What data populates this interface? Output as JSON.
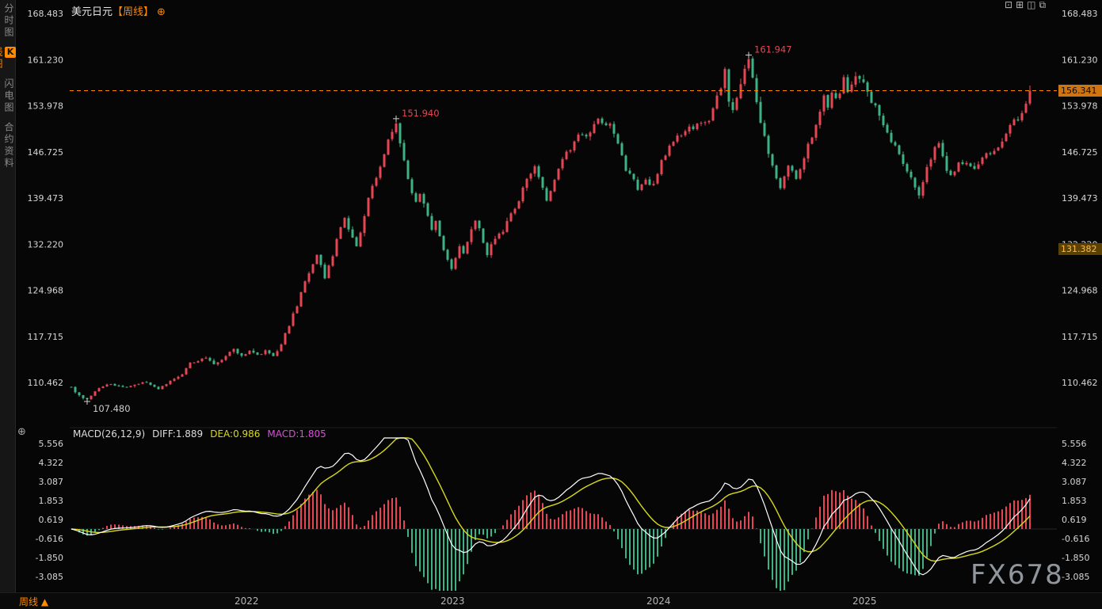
{
  "app": {
    "title_symbol": "美元日元",
    "title_period": "【周线】",
    "watermark": "FX678"
  },
  "icons": {
    "add_circle": "⊕"
  },
  "sidebar": {
    "tabs": [
      {
        "label": "分时图",
        "active": false,
        "boxed_first_char": false
      },
      {
        "label": "K线图",
        "active": true,
        "boxed_first_char": true
      },
      {
        "label": "闪电图",
        "active": false,
        "boxed_first_char": false
      },
      {
        "label": "合约资料",
        "active": false,
        "boxed_first_char": false
      }
    ]
  },
  "toolbar": {
    "icons": [
      {
        "name": "single-pane-layout-icon",
        "glyph": "⊡"
      },
      {
        "name": "grid-layout-icon",
        "glyph": "⊞"
      },
      {
        "name": "split-pane-layout-icon",
        "glyph": "◫"
      },
      {
        "name": "new-window-icon",
        "glyph": "⧉"
      }
    ]
  },
  "price_axis": {
    "ticks": [
      "168.483",
      "161.230",
      "153.978",
      "146.725",
      "139.473",
      "132.220",
      "124.968",
      "117.715",
      "110.462"
    ]
  },
  "macd_axis": {
    "ticks": [
      "5.556",
      "4.322",
      "3.087",
      "1.853",
      "0.619",
      "-0.616",
      "-1.850",
      "-3.085"
    ]
  },
  "x_axis": {
    "years": [
      {
        "label": "2022",
        "week": 44
      },
      {
        "label": "2023",
        "week": 96
      },
      {
        "label": "2024",
        "week": 148
      },
      {
        "label": "2025",
        "week": 200
      }
    ]
  },
  "badges": {
    "current_price": "156.341",
    "secondary_price": "131.382"
  },
  "annotations": [
    {
      "week": 4,
      "price": 107.48,
      "label": "107.480",
      "placement": "below",
      "color": "neutral"
    },
    {
      "week": 82,
      "price": 151.94,
      "label": "151.940",
      "placement": "above",
      "color": "up"
    },
    {
      "week": 171,
      "price": 161.947,
      "label": "161.947",
      "placement": "above",
      "color": "up"
    }
  ],
  "macd_header": {
    "name": "MACD(26,12,9)",
    "diff_label": "DIFF:1.889",
    "dea_label": "DEA:0.986",
    "macd_label": "MACD:1.805"
  },
  "bottom_bar": {
    "period_label": "周线",
    "arrow": "▲"
  },
  "colors": {
    "up": "#e64653",
    "down": "#3db385",
    "accent": "#ff8a00",
    "diff_line": "#ffffff",
    "dea_line": "#d9d919",
    "macd_text": "#d94fd9"
  },
  "chart_data": {
    "type": "candlestick+macd",
    "symbol": "美元日元 (USD/JPY)",
    "period": "周线 weekly",
    "weeks": 243,
    "price_line": 156.341,
    "ylim": [
      104,
      170
    ],
    "macd_ylim": [
      -4.1,
      6.0
    ],
    "anchors": [
      [
        0,
        109.6
      ],
      [
        2,
        108.3
      ],
      [
        4,
        107.9
      ],
      [
        6,
        109.2
      ],
      [
        10,
        110.3
      ],
      [
        14,
        109.7
      ],
      [
        18,
        110.6
      ],
      [
        22,
        109.6
      ],
      [
        26,
        110.9
      ],
      [
        28,
        111.8
      ],
      [
        30,
        113.6
      ],
      [
        32,
        113.9
      ],
      [
        34,
        114.2
      ],
      [
        36,
        113.4
      ],
      [
        38,
        113.8
      ],
      [
        40,
        115.2
      ],
      [
        41,
        115.9
      ],
      [
        43,
        114.5
      ],
      [
        45,
        115.6
      ],
      [
        47,
        114.8
      ],
      [
        49,
        115.5
      ],
      [
        51,
        114.8
      ],
      [
        53,
        116.4
      ],
      [
        55,
        119.6
      ],
      [
        57,
        122.6
      ],
      [
        59,
        126.2
      ],
      [
        61,
        129.2
      ],
      [
        62,
        130.8
      ],
      [
        64,
        126.9
      ],
      [
        66,
        130.6
      ],
      [
        68,
        134.8
      ],
      [
        69,
        136.4
      ],
      [
        71,
        133.2
      ],
      [
        72,
        131.8
      ],
      [
        74,
        137.0
      ],
      [
        76,
        141.2
      ],
      [
        78,
        144.6
      ],
      [
        80,
        148.4
      ],
      [
        82,
        151.4
      ],
      [
        83,
        147.6
      ],
      [
        85,
        142.4
      ],
      [
        87,
        138.6
      ],
      [
        88,
        140.3
      ],
      [
        90,
        136.7
      ],
      [
        91,
        134.3
      ],
      [
        92,
        136.1
      ],
      [
        94,
        131.1
      ],
      [
        96,
        128.1
      ],
      [
        98,
        132.1
      ],
      [
        99,
        131.1
      ],
      [
        101,
        134.7
      ],
      [
        102,
        136.2
      ],
      [
        104,
        132.7
      ],
      [
        105,
        130.7
      ],
      [
        107,
        133.0
      ],
      [
        109,
        134.3
      ],
      [
        111,
        136.9
      ],
      [
        113,
        139.4
      ],
      [
        115,
        142.3
      ],
      [
        117,
        144.8
      ],
      [
        119,
        141.1
      ],
      [
        120,
        139.0
      ],
      [
        122,
        142.4
      ],
      [
        124,
        145.4
      ],
      [
        126,
        147.4
      ],
      [
        128,
        148.9
      ],
      [
        130,
        149.2
      ],
      [
        132,
        150.6
      ],
      [
        133,
        151.4
      ],
      [
        135,
        150.6
      ],
      [
        136,
        151.5
      ],
      [
        138,
        147.9
      ],
      [
        140,
        144.2
      ],
      [
        143,
        140.9
      ],
      [
        145,
        142.3
      ],
      [
        147,
        141.5
      ],
      [
        149,
        145.0
      ],
      [
        151,
        148.1
      ],
      [
        153,
        149.1
      ],
      [
        155,
        150.5
      ],
      [
        157,
        150.1
      ],
      [
        159,
        151.4
      ],
      [
        161,
        151.6
      ],
      [
        163,
        155.1
      ],
      [
        165,
        159.4
      ],
      [
        166,
        155.2
      ],
      [
        167,
        153.2
      ],
      [
        169,
        157.2
      ],
      [
        171,
        161.2
      ],
      [
        173,
        154.5
      ],
      [
        175,
        148.8
      ],
      [
        177,
        144.6
      ],
      [
        179,
        140.7
      ],
      [
        180,
        143.1
      ],
      [
        181,
        144.9
      ],
      [
        183,
        142.1
      ],
      [
        185,
        146.1
      ],
      [
        187,
        149.4
      ],
      [
        189,
        153.4
      ],
      [
        190,
        155.1
      ],
      [
        191,
        154.1
      ],
      [
        192,
        156.4
      ],
      [
        193,
        154.7
      ],
      [
        195,
        158.0
      ],
      [
        196,
        156.5
      ],
      [
        198,
        158.6
      ],
      [
        200,
        157.2
      ],
      [
        202,
        154.9
      ],
      [
        204,
        152.5
      ],
      [
        206,
        150.0
      ],
      [
        208,
        147.5
      ],
      [
        210,
        145.2
      ],
      [
        212,
        142.5
      ],
      [
        214,
        140.3
      ],
      [
        216,
        144.1
      ],
      [
        218,
        147.3
      ],
      [
        219,
        147.9
      ],
      [
        221,
        144.2
      ],
      [
        222,
        142.9
      ],
      [
        224,
        144.7
      ],
      [
        226,
        144.9
      ],
      [
        228,
        144.4
      ],
      [
        230,
        145.9
      ],
      [
        232,
        146.7
      ],
      [
        234,
        147.1
      ],
      [
        236,
        149.7
      ],
      [
        238,
        152.2
      ],
      [
        239,
        151.6
      ],
      [
        240,
        152.9
      ],
      [
        241,
        154.0
      ],
      [
        242,
        156.341
      ]
    ],
    "overrides": {
      "4": {
        "low": 107.48
      },
      "82": {
        "high": 151.94
      },
      "171": {
        "high": 161.947
      },
      "242": {
        "close": 156.341,
        "high": 157.15
      }
    },
    "macd": {
      "fast": 12,
      "slow": 26,
      "signal": 9,
      "last": {
        "diff": 1.889,
        "dea": 0.986,
        "macd": 1.805
      }
    }
  }
}
